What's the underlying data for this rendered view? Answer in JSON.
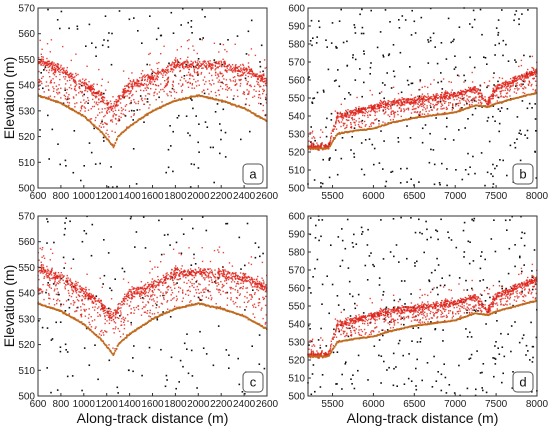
{
  "chart_data": [
    {
      "type": "scatter",
      "panel_label": "a",
      "xlim": [
        600,
        2600
      ],
      "ylim": [
        500,
        570
      ],
      "xticks": [
        600,
        800,
        1000,
        1200,
        1400,
        1600,
        1800,
        2000,
        2200,
        2400,
        2600
      ],
      "yticks": [
        500,
        510,
        520,
        530,
        540,
        550,
        560,
        570
      ],
      "ylabel": "Elevation (m)",
      "xlabel": "",
      "series": [
        {
          "role": "canopy",
          "color": "#e0261c",
          "x": [
            600,
            800,
            1000,
            1150,
            1250,
            1300,
            1400,
            1600,
            1800,
            2000,
            2200,
            2400,
            2600
          ],
          "y": [
            550,
            546,
            541,
            536,
            530,
            534,
            540,
            543,
            548,
            548,
            548,
            546,
            542
          ]
        },
        {
          "role": "ground",
          "color": "#c06a1e",
          "x": [
            600,
            800,
            1000,
            1150,
            1260,
            1300,
            1400,
            1600,
            1800,
            2000,
            2200,
            2400,
            2600
          ],
          "y": [
            536,
            533,
            528,
            522,
            516,
            520,
            524,
            530,
            534,
            536,
            534,
            531,
            526
          ]
        }
      ],
      "noise_color": "#111111",
      "noise_points": 170
    },
    {
      "type": "scatter",
      "panel_label": "b",
      "xlim": [
        5200,
        8000
      ],
      "ylim": [
        500,
        600
      ],
      "xticks": [
        5500,
        6000,
        6500,
        7000,
        7500,
        8000
      ],
      "yticks": [
        500,
        510,
        520,
        530,
        540,
        550,
        560,
        570,
        580,
        590,
        600
      ],
      "ylabel": "",
      "xlabel": "",
      "series": [
        {
          "role": "canopy",
          "color": "#e0261c",
          "x": [
            5200,
            5450,
            5560,
            5800,
            6000,
            6200,
            6500,
            7000,
            7250,
            7400,
            7500,
            8000
          ],
          "y": [
            523,
            523,
            540,
            543,
            545,
            547,
            549,
            552,
            555,
            548,
            556,
            565
          ]
        },
        {
          "role": "ground",
          "color": "#c06a1e",
          "x": [
            5200,
            5450,
            5560,
            5800,
            6000,
            6200,
            6500,
            7000,
            7250,
            7400,
            7500,
            8000
          ],
          "y": [
            522,
            522,
            530,
            532,
            533,
            536,
            539,
            542,
            546,
            545,
            547,
            553
          ]
        }
      ],
      "noise_color": "#111111",
      "noise_points": 340
    },
    {
      "type": "scatter",
      "panel_label": "c",
      "xlim": [
        600,
        2600
      ],
      "ylim": [
        500,
        570
      ],
      "xticks": [
        600,
        800,
        1000,
        1200,
        1400,
        1600,
        1800,
        2000,
        2200,
        2400,
        2600
      ],
      "yticks": [
        500,
        510,
        520,
        530,
        540,
        550,
        560,
        570
      ],
      "ylabel": "Elevation (m)",
      "xlabel": "Along-track distance (m)",
      "series": [
        {
          "role": "canopy",
          "color": "#e0261c",
          "x": [
            600,
            800,
            1000,
            1150,
            1250,
            1300,
            1400,
            1600,
            1800,
            2000,
            2200,
            2400,
            2600
          ],
          "y": [
            550,
            546,
            541,
            536,
            530,
            534,
            540,
            543,
            548,
            548,
            548,
            546,
            542
          ]
        },
        {
          "role": "ground",
          "color": "#c06a1e",
          "x": [
            600,
            800,
            1000,
            1150,
            1260,
            1300,
            1400,
            1600,
            1800,
            2000,
            2200,
            2400,
            2600
          ],
          "y": [
            536,
            533,
            528,
            522,
            516,
            520,
            524,
            530,
            534,
            536,
            534,
            531,
            526
          ]
        }
      ],
      "noise_color": "#111111",
      "noise_points": 170
    },
    {
      "type": "scatter",
      "panel_label": "d",
      "xlim": [
        5200,
        8000
      ],
      "ylim": [
        500,
        600
      ],
      "xticks": [
        5500,
        6000,
        6500,
        7000,
        7500,
        8000
      ],
      "yticks": [
        500,
        510,
        520,
        530,
        540,
        550,
        560,
        570,
        580,
        590,
        600
      ],
      "ylabel": "",
      "xlabel": "Along-track distance (m)",
      "series": [
        {
          "role": "canopy",
          "color": "#e0261c",
          "x": [
            5200,
            5450,
            5560,
            5800,
            6000,
            6200,
            6500,
            7000,
            7250,
            7400,
            7500,
            8000
          ],
          "y": [
            523,
            523,
            540,
            543,
            545,
            547,
            549,
            552,
            555,
            548,
            556,
            565
          ]
        },
        {
          "role": "ground",
          "color": "#c06a1e",
          "x": [
            5200,
            5450,
            5560,
            5800,
            6000,
            6200,
            6500,
            7000,
            7250,
            7400,
            7500,
            8000
          ],
          "y": [
            522,
            522,
            530,
            532,
            533,
            536,
            539,
            542,
            546,
            545,
            547,
            553
          ]
        }
      ],
      "noise_color": "#111111",
      "noise_points": 340
    }
  ]
}
